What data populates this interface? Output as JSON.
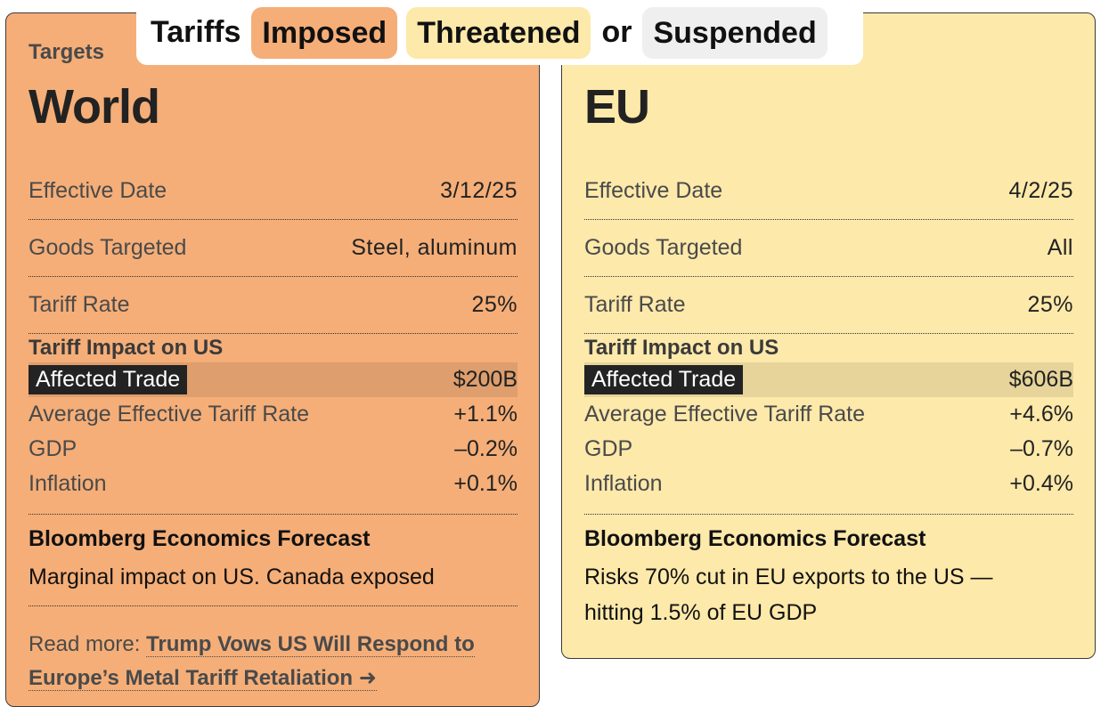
{
  "legend": {
    "prefix": "Tariffs",
    "imposed": "Imposed",
    "threatened": "Threatened",
    "connector": "or",
    "suspended": "Suspended"
  },
  "colors": {
    "imposed": "#f5ae78",
    "threatened": "#fde9aa",
    "suspended": "#efefef"
  },
  "cards": [
    {
      "eyebrow": "Targets",
      "title": "World",
      "rows": [
        {
          "label": "Effective Date",
          "value": "3/12/25"
        },
        {
          "label": "Goods Targeted",
          "value": "Steel, aluminum"
        },
        {
          "label": "Tariff Rate",
          "value": "25%"
        }
      ],
      "impact_title": "Tariff Impact on US",
      "impact": [
        {
          "label": "Affected Trade",
          "value": "$200B"
        },
        {
          "label": "Average Effective Tariff Rate",
          "value": "+1.1%"
        },
        {
          "label": "GDP",
          "value": "–0.2%"
        },
        {
          "label": "Inflation",
          "value": "+0.1%"
        }
      ],
      "forecast_title": "Bloomberg Economics Forecast",
      "forecast_text": "Marginal impact on US. Canada exposed",
      "readmore_prefix": "Read more:",
      "readmore_link": "Trump Vows US Will Respond to Europe’s Metal Tariff Retaliation ➜"
    },
    {
      "title": "EU",
      "rows": [
        {
          "label": "Effective Date",
          "value": "4/2/25"
        },
        {
          "label": "Goods Targeted",
          "value": "All"
        },
        {
          "label": "Tariff Rate",
          "value": "25%"
        }
      ],
      "impact_title": "Tariff Impact on US",
      "impact": [
        {
          "label": "Affected Trade",
          "value": "$606B"
        },
        {
          "label": "Average Effective Tariff Rate",
          "value": "+4.6%"
        },
        {
          "label": "GDP",
          "value": "–0.7%"
        },
        {
          "label": "Inflation",
          "value": "+0.4%"
        }
      ],
      "forecast_title": "Bloomberg Economics Forecast",
      "forecast_text": "Risks 70% cut in EU exports to the US — hitting 1.5% of EU GDP"
    }
  ]
}
